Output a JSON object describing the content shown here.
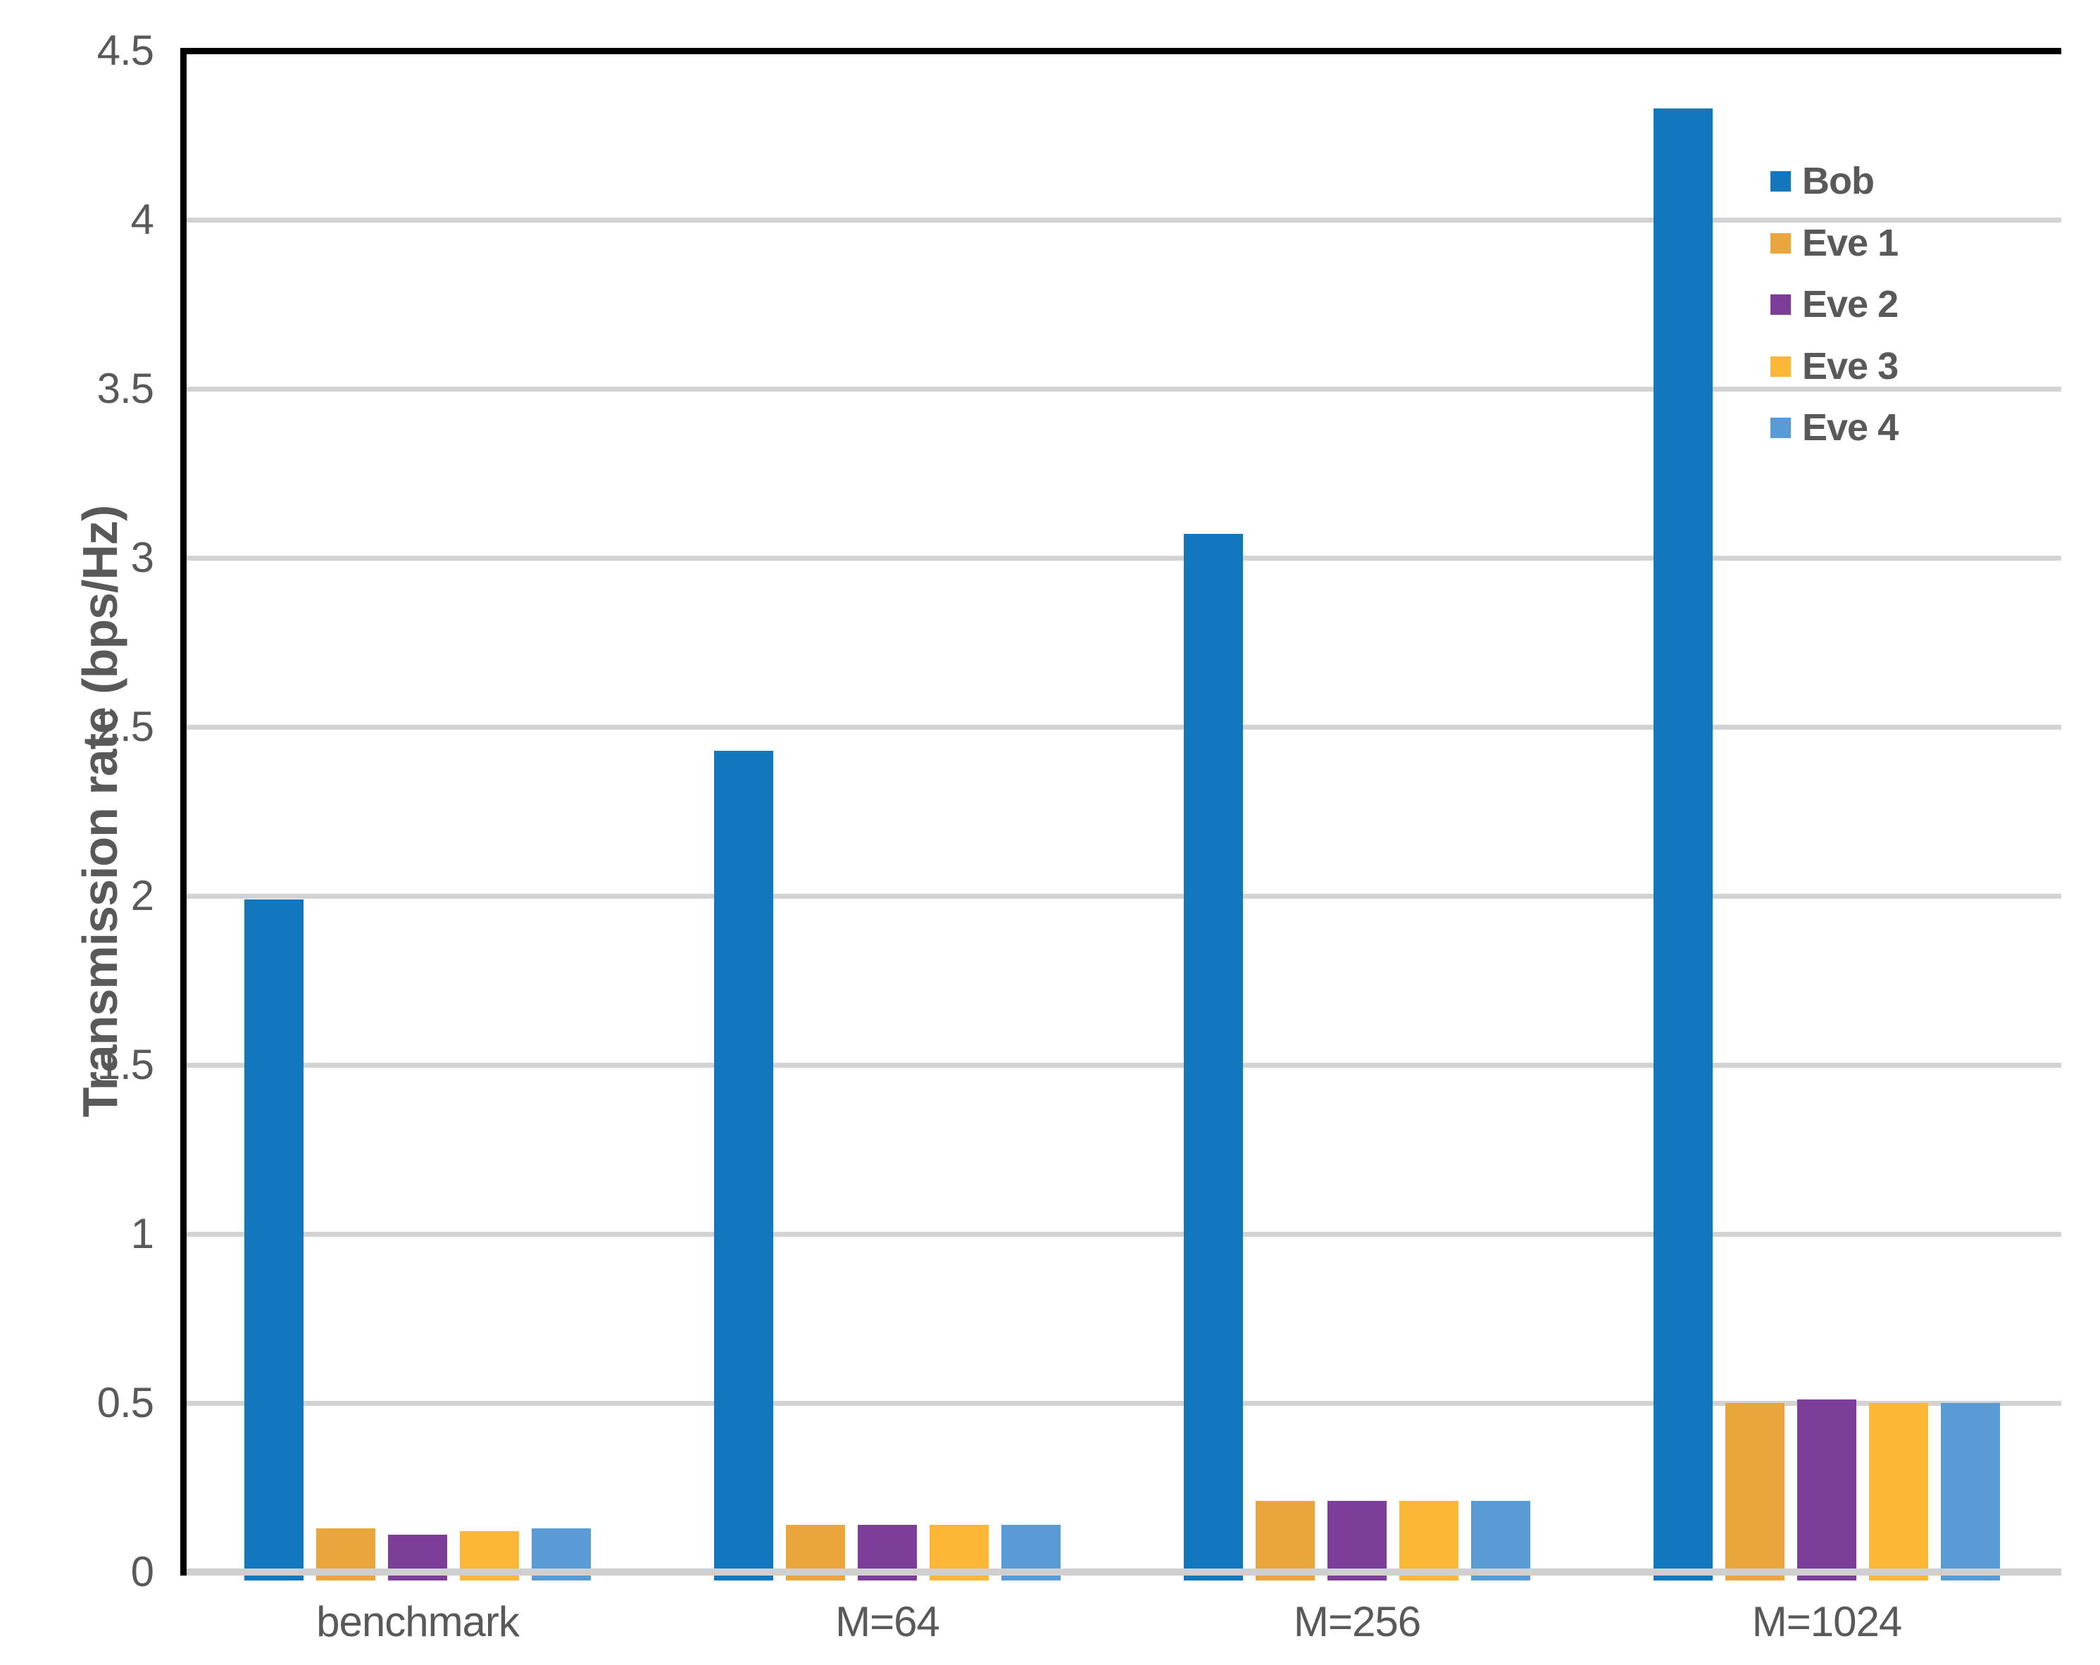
{
  "chart_data": {
    "type": "bar",
    "title": "",
    "xlabel": "",
    "ylabel": "Transmission rate (bps/Hz)",
    "categories": [
      "benchmark",
      "M=64",
      "M=256",
      "M=1024"
    ],
    "series": [
      {
        "name": "Bob",
        "color": "#1277BD",
        "values": [
          1.99,
          2.43,
          3.07,
          4.33
        ]
      },
      {
        "name": "Eve 1",
        "color": "#E9A63C",
        "values": [
          0.13,
          0.14,
          0.21,
          0.5
        ]
      },
      {
        "name": "Eve 2",
        "color": "#7C3E99",
        "values": [
          0.11,
          0.14,
          0.21,
          0.51
        ]
      },
      {
        "name": "Eve 3",
        "color": "#FBB735",
        "values": [
          0.12,
          0.14,
          0.21,
          0.5
        ]
      },
      {
        "name": "Eve 4",
        "color": "#599CD5",
        "values": [
          0.13,
          0.14,
          0.21,
          0.5
        ]
      }
    ],
    "y_ticks": [
      "0",
      "0.5",
      "1",
      "1.5",
      "2",
      "2.5",
      "3",
      "3.5",
      "4",
      "4.5"
    ],
    "ylim": [
      0,
      4.5
    ],
    "grid": "horizontal",
    "legend_position": "top-right-inside"
  },
  "colors": {
    "gridline": "#D3D3D3",
    "axis_baseline": "#CFCFCF",
    "axis_line": "#000000",
    "text": "#595959",
    "background": "#FFFFFF"
  }
}
